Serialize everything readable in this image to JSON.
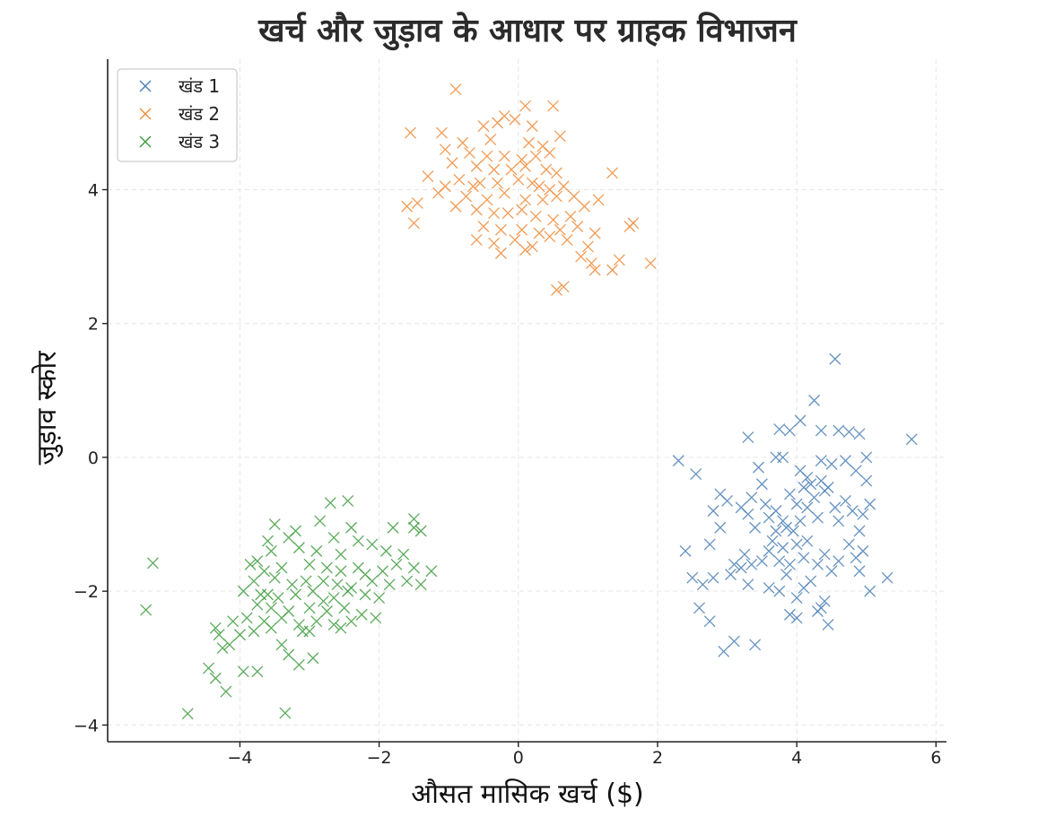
{
  "chart_data": {
    "type": "scatter",
    "title": "खर्च और जुड़ाव के आधार पर ग्राहक विभाजन",
    "xlabel": "औसत मासिक खर्च ($)",
    "ylabel": "जुड़ाव स्कोर",
    "xlim": [
      -5.9,
      6.15
    ],
    "ylim": [
      -4.25,
      5.95
    ],
    "xticks": [
      -4,
      -2,
      0,
      2,
      4,
      6
    ],
    "yticks": [
      -4,
      -2,
      0,
      2,
      4
    ],
    "xtick_labels": [
      "−4",
      "−2",
      "0",
      "2",
      "4",
      "6"
    ],
    "ytick_labels": [
      "−4",
      "−2",
      "0",
      "2",
      "4"
    ],
    "grid": true,
    "legend_position": "top-left",
    "marker": "x",
    "series": [
      {
        "name": "खंड 1",
        "color": "#4a7fb5",
        "points": [
          [
            4.55,
            1.47
          ],
          [
            4.25,
            0.85
          ],
          [
            5.65,
            0.27
          ],
          [
            3.3,
            0.3
          ],
          [
            4.05,
            0.55
          ],
          [
            3.75,
            0.42
          ],
          [
            3.9,
            0.4
          ],
          [
            4.35,
            0.4
          ],
          [
            4.6,
            0.4
          ],
          [
            4.75,
            0.38
          ],
          [
            4.9,
            0.35
          ],
          [
            2.3,
            -0.05
          ],
          [
            2.55,
            -0.25
          ],
          [
            3.45,
            -0.15
          ],
          [
            3.7,
            0.0
          ],
          [
            3.8,
            0.0
          ],
          [
            4.05,
            -0.2
          ],
          [
            4.15,
            -0.3
          ],
          [
            4.35,
            -0.05
          ],
          [
            4.5,
            -0.1
          ],
          [
            4.7,
            -0.05
          ],
          [
            4.85,
            -0.2
          ],
          [
            5.0,
            0.0
          ],
          [
            5.0,
            -0.35
          ],
          [
            2.9,
            -0.55
          ],
          [
            3.0,
            -0.65
          ],
          [
            3.2,
            -0.75
          ],
          [
            3.35,
            -0.6
          ],
          [
            3.5,
            -0.4
          ],
          [
            3.55,
            -0.7
          ],
          [
            3.6,
            -0.9
          ],
          [
            3.7,
            -0.8
          ],
          [
            3.8,
            -0.95
          ],
          [
            3.85,
            -1.05
          ],
          [
            3.9,
            -0.55
          ],
          [
            3.95,
            -1.1
          ],
          [
            4.0,
            -0.7
          ],
          [
            4.05,
            -0.95
          ],
          [
            4.1,
            -0.45
          ],
          [
            4.15,
            -0.75
          ],
          [
            4.2,
            -0.4
          ],
          [
            4.25,
            -0.6
          ],
          [
            4.3,
            -0.9
          ],
          [
            4.35,
            -0.35
          ],
          [
            4.4,
            -0.5
          ],
          [
            4.45,
            -0.45
          ],
          [
            4.55,
            -0.75
          ],
          [
            4.6,
            -0.95
          ],
          [
            4.7,
            -0.65
          ],
          [
            4.8,
            -0.8
          ],
          [
            4.9,
            -1.1
          ],
          [
            4.95,
            -0.85
          ],
          [
            5.05,
            -0.7
          ],
          [
            2.8,
            -0.8
          ],
          [
            3.3,
            -0.85
          ],
          [
            3.4,
            -1.05
          ],
          [
            2.4,
            -1.4
          ],
          [
            2.5,
            -1.8
          ],
          [
            2.65,
            -1.9
          ],
          [
            2.75,
            -1.3
          ],
          [
            2.8,
            -1.8
          ],
          [
            2.9,
            -1.05
          ],
          [
            3.05,
            -1.75
          ],
          [
            3.1,
            -1.6
          ],
          [
            3.2,
            -1.65
          ],
          [
            3.25,
            -1.45
          ],
          [
            3.3,
            -1.9
          ],
          [
            3.35,
            -1.6
          ],
          [
            3.5,
            -1.55
          ],
          [
            3.6,
            -1.4
          ],
          [
            3.65,
            -1.25
          ],
          [
            3.7,
            -1.1
          ],
          [
            3.75,
            -1.55
          ],
          [
            3.8,
            -1.35
          ],
          [
            3.85,
            -1.75
          ],
          [
            3.9,
            -1.6
          ],
          [
            4.0,
            -1.3
          ],
          [
            4.1,
            -1.5
          ],
          [
            4.15,
            -1.25
          ],
          [
            4.2,
            -1.85
          ],
          [
            4.3,
            -1.6
          ],
          [
            4.4,
            -1.45
          ],
          [
            4.5,
            -1.7
          ],
          [
            4.6,
            -1.55
          ],
          [
            4.75,
            -1.3
          ],
          [
            4.85,
            -1.5
          ],
          [
            4.9,
            -1.7
          ],
          [
            5.3,
            -1.8
          ],
          [
            5.05,
            -2.0
          ],
          [
            2.6,
            -2.25
          ],
          [
            2.75,
            -2.45
          ],
          [
            3.6,
            -1.95
          ],
          [
            3.75,
            -2.0
          ],
          [
            3.9,
            -2.35
          ],
          [
            4.0,
            -2.4
          ],
          [
            4.0,
            -2.1
          ],
          [
            4.1,
            -1.95
          ],
          [
            4.35,
            -2.25
          ],
          [
            4.4,
            -2.15
          ],
          [
            4.45,
            -2.5
          ],
          [
            4.3,
            -2.3
          ],
          [
            2.95,
            -2.9
          ],
          [
            3.1,
            -2.75
          ],
          [
            3.4,
            -2.8
          ],
          [
            4.95,
            -1.4
          ]
        ]
      },
      {
        "name": "खंड 2",
        "color": "#ee8a36",
        "points": [
          [
            -0.9,
            5.5
          ],
          [
            0.1,
            5.25
          ],
          [
            0.5,
            5.25
          ],
          [
            -0.2,
            5.1
          ],
          [
            -0.05,
            5.05
          ],
          [
            -0.3,
            5.0
          ],
          [
            -0.5,
            4.95
          ],
          [
            0.2,
            4.95
          ],
          [
            -1.55,
            4.85
          ],
          [
            -1.1,
            4.85
          ],
          [
            0.6,
            4.8
          ],
          [
            -0.8,
            4.7
          ],
          [
            -0.4,
            4.75
          ],
          [
            0.15,
            4.7
          ],
          [
            0.35,
            4.65
          ],
          [
            -1.05,
            4.6
          ],
          [
            -0.7,
            4.55
          ],
          [
            -0.45,
            4.5
          ],
          [
            -0.2,
            4.5
          ],
          [
            0.25,
            4.5
          ],
          [
            0.45,
            4.55
          ],
          [
            -0.95,
            4.4
          ],
          [
            -0.6,
            4.35
          ],
          [
            -0.35,
            4.3
          ],
          [
            -0.1,
            4.3
          ],
          [
            0.1,
            4.35
          ],
          [
            0.4,
            4.3
          ],
          [
            0.55,
            4.25
          ],
          [
            1.35,
            4.25
          ],
          [
            -1.3,
            4.2
          ],
          [
            -0.85,
            4.15
          ],
          [
            -0.55,
            4.1
          ],
          [
            -0.3,
            4.1
          ],
          [
            0.0,
            4.15
          ],
          [
            0.2,
            4.1
          ],
          [
            0.3,
            4.05
          ],
          [
            0.45,
            4.0
          ],
          [
            0.65,
            4.05
          ],
          [
            -1.15,
            3.95
          ],
          [
            -0.75,
            3.9
          ],
          [
            -0.45,
            3.85
          ],
          [
            -0.2,
            3.95
          ],
          [
            0.1,
            3.85
          ],
          [
            0.35,
            3.85
          ],
          [
            0.55,
            3.9
          ],
          [
            0.8,
            3.9
          ],
          [
            1.15,
            3.85
          ],
          [
            -1.6,
            3.75
          ],
          [
            -1.45,
            3.8
          ],
          [
            -0.9,
            3.75
          ],
          [
            -0.6,
            3.7
          ],
          [
            -0.35,
            3.65
          ],
          [
            -0.15,
            3.65
          ],
          [
            0.05,
            3.7
          ],
          [
            0.25,
            3.6
          ],
          [
            0.5,
            3.55
          ],
          [
            0.75,
            3.6
          ],
          [
            0.95,
            3.75
          ],
          [
            -1.5,
            3.5
          ],
          [
            -0.5,
            3.45
          ],
          [
            -0.25,
            3.4
          ],
          [
            0.05,
            3.4
          ],
          [
            0.3,
            3.35
          ],
          [
            0.6,
            3.4
          ],
          [
            0.85,
            3.45
          ],
          [
            1.1,
            3.35
          ],
          [
            1.6,
            3.45
          ],
          [
            1.65,
            3.5
          ],
          [
            -0.6,
            3.25
          ],
          [
            -0.35,
            3.2
          ],
          [
            -0.05,
            3.25
          ],
          [
            0.2,
            3.15
          ],
          [
            0.45,
            3.3
          ],
          [
            0.7,
            3.25
          ],
          [
            1.0,
            3.15
          ],
          [
            -0.25,
            3.05
          ],
          [
            0.1,
            3.1
          ],
          [
            0.9,
            3.0
          ],
          [
            1.35,
            2.8
          ],
          [
            1.45,
            2.95
          ],
          [
            1.1,
            2.8
          ],
          [
            1.05,
            2.9
          ],
          [
            0.55,
            2.5
          ],
          [
            0.65,
            2.55
          ],
          [
            1.9,
            2.9
          ],
          [
            -1.05,
            4.05
          ],
          [
            0.05,
            4.45
          ],
          [
            -0.65,
            4.05
          ]
        ]
      },
      {
        "name": "खंड 3",
        "color": "#3d9b3d",
        "points": [
          [
            -2.45,
            -0.65
          ],
          [
            -2.7,
            -0.68
          ],
          [
            -1.5,
            -0.92
          ],
          [
            -1.4,
            -1.1
          ],
          [
            -1.5,
            -1.05
          ],
          [
            -1.8,
            -1.05
          ],
          [
            -3.5,
            -1.0
          ],
          [
            -2.85,
            -0.95
          ],
          [
            -3.2,
            -1.1
          ],
          [
            -2.4,
            -1.05
          ],
          [
            -3.6,
            -1.25
          ],
          [
            -3.3,
            -1.2
          ],
          [
            -2.65,
            -1.2
          ],
          [
            -2.3,
            -1.25
          ],
          [
            -2.1,
            -1.3
          ],
          [
            -3.75,
            -1.55
          ],
          [
            -3.55,
            -1.4
          ],
          [
            -3.15,
            -1.35
          ],
          [
            -2.9,
            -1.4
          ],
          [
            -2.55,
            -1.45
          ],
          [
            -1.9,
            -1.4
          ],
          [
            -1.65,
            -1.45
          ],
          [
            -3.85,
            -1.6
          ],
          [
            -3.65,
            -1.7
          ],
          [
            -3.4,
            -1.65
          ],
          [
            -3.0,
            -1.6
          ],
          [
            -2.75,
            -1.65
          ],
          [
            -2.55,
            -1.7
          ],
          [
            -2.3,
            -1.65
          ],
          [
            -2.2,
            -1.75
          ],
          [
            -1.95,
            -1.7
          ],
          [
            -1.75,
            -1.6
          ],
          [
            -1.5,
            -1.65
          ],
          [
            -1.25,
            -1.7
          ],
          [
            -3.8,
            -1.85
          ],
          [
            -3.5,
            -1.8
          ],
          [
            -3.25,
            -1.9
          ],
          [
            -3.05,
            -1.85
          ],
          [
            -2.8,
            -1.85
          ],
          [
            -2.6,
            -1.9
          ],
          [
            -2.4,
            -1.95
          ],
          [
            -2.1,
            -1.85
          ],
          [
            -1.85,
            -1.9
          ],
          [
            -1.6,
            -1.85
          ],
          [
            -1.4,
            -1.9
          ],
          [
            -3.95,
            -2.0
          ],
          [
            -3.7,
            -2.05
          ],
          [
            -3.45,
            -2.1
          ],
          [
            -3.2,
            -2.05
          ],
          [
            -2.95,
            -2.0
          ],
          [
            -2.65,
            -2.1
          ],
          [
            -2.45,
            -2.0
          ],
          [
            -2.2,
            -2.05
          ],
          [
            -2.0,
            -2.1
          ],
          [
            -3.75,
            -2.2
          ],
          [
            -3.55,
            -2.25
          ],
          [
            -3.3,
            -2.3
          ],
          [
            -3.0,
            -2.25
          ],
          [
            -2.75,
            -2.3
          ],
          [
            -2.5,
            -2.25
          ],
          [
            -2.25,
            -2.35
          ],
          [
            -2.05,
            -2.4
          ],
          [
            -3.9,
            -2.4
          ],
          [
            -3.65,
            -2.45
          ],
          [
            -3.4,
            -2.4
          ],
          [
            -3.15,
            -2.5
          ],
          [
            -2.9,
            -2.45
          ],
          [
            -2.65,
            -2.5
          ],
          [
            -2.4,
            -2.45
          ],
          [
            -4.1,
            -2.45
          ],
          [
            -4.0,
            -2.65
          ],
          [
            -3.8,
            -2.6
          ],
          [
            -3.55,
            -2.55
          ],
          [
            -3.1,
            -2.6
          ],
          [
            -3.0,
            -2.6
          ],
          [
            -2.55,
            -2.55
          ],
          [
            -4.35,
            -2.55
          ],
          [
            -4.3,
            -2.65
          ],
          [
            -4.25,
            -2.85
          ],
          [
            -4.15,
            -2.8
          ],
          [
            -3.4,
            -2.8
          ],
          [
            -3.3,
            -2.95
          ],
          [
            -3.15,
            -3.1
          ],
          [
            -2.95,
            -3.0
          ],
          [
            -4.45,
            -3.15
          ],
          [
            -4.35,
            -3.3
          ],
          [
            -3.95,
            -3.2
          ],
          [
            -3.75,
            -3.2
          ],
          [
            -4.2,
            -3.5
          ],
          [
            -5.25,
            -1.58
          ],
          [
            -5.35,
            -2.28
          ],
          [
            -4.75,
            -3.83
          ],
          [
            -3.35,
            -3.82
          ],
          [
            -3.6,
            -2.05
          ],
          [
            -2.8,
            -2.15
          ]
        ]
      }
    ]
  }
}
